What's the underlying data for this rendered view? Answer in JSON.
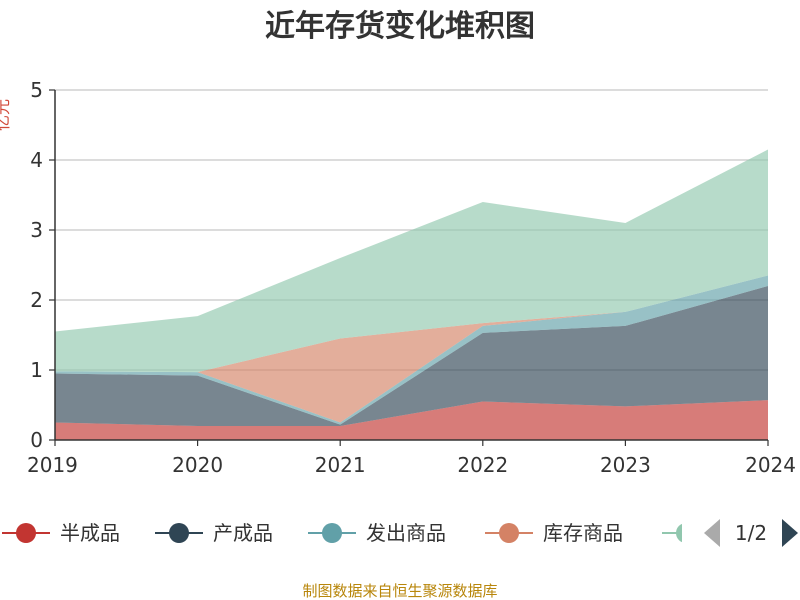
{
  "chart_data": {
    "type": "area",
    "stacked": true,
    "title": "近年存货变化堆积图",
    "ylabel": "亿元",
    "x": [
      "2019",
      "2020",
      "2021",
      "2022",
      "2023",
      "2024"
    ],
    "ylim": [
      0,
      5
    ],
    "yticks": [
      "0",
      "1",
      "2",
      "3",
      "4",
      "5"
    ],
    "grid": true,
    "series": [
      {
        "name": "半成品",
        "color": "#c23531",
        "values": [
          0.25,
          0.2,
          0.2,
          0.55,
          0.48,
          0.57
        ]
      },
      {
        "name": "产成品",
        "color": "#2f4554",
        "values": [
          0.7,
          0.72,
          0.02,
          0.98,
          1.15,
          1.63
        ]
      },
      {
        "name": "发出商品",
        "color": "#61a0a8",
        "values": [
          0.03,
          0.05,
          0.03,
          0.1,
          0.2,
          0.15
        ]
      },
      {
        "name": "库存商品",
        "color": "#d48265",
        "values": [
          0.0,
          0.0,
          1.2,
          0.04,
          0.0,
          0.0
        ]
      },
      {
        "name": "",
        "color": "#91c7ae",
        "values": [
          0.57,
          0.8,
          1.15,
          1.73,
          1.27,
          1.8
        ]
      }
    ],
    "legend": {
      "position": "bottom",
      "page": "1/2"
    }
  },
  "footer": {
    "source": "制图数据来自恒生聚源数据库"
  }
}
